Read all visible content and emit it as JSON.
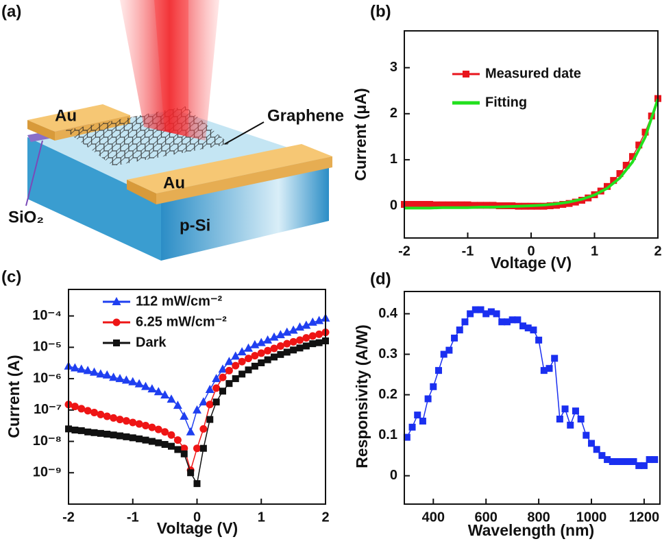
{
  "diagram": {
    "label": "(a)",
    "labels": [
      "Au",
      "Graphene",
      "Au",
      "SiO₂",
      "p-Si"
    ]
  },
  "chart_data": [
    {
      "type": "line",
      "label": "(b)",
      "xlabel": "Voltage (V)",
      "ylabel": "Current (μA)",
      "xlim": [
        -2,
        2
      ],
      "ylim": [
        -0.7,
        3.8
      ],
      "xticks": [
        -2,
        -1,
        0,
        1,
        2
      ],
      "yticks": [
        0,
        1,
        2,
        3
      ],
      "legend": "upper left",
      "series": [
        {
          "name": "Measured date",
          "color": "#e8141c",
          "marker": "square",
          "x": [
            -2,
            -1.9,
            -1.8,
            -1.7,
            -1.6,
            -1.5,
            -1.4,
            -1.3,
            -1.2,
            -1.1,
            -1,
            -0.9,
            -0.8,
            -0.7,
            -0.6,
            -0.5,
            -0.4,
            -0.3,
            -0.2,
            -0.1,
            0,
            0.1,
            0.2,
            0.3,
            0.4,
            0.5,
            0.6,
            0.7,
            0.8,
            0.9,
            1,
            1.1,
            1.2,
            1.3,
            1.4,
            1.5,
            1.6,
            1.7,
            1.8,
            1.9,
            2
          ],
          "values": [
            0.03,
            0.03,
            0.03,
            0.03,
            0.03,
            0.02,
            0.02,
            0.02,
            0.02,
            0.02,
            0.02,
            0.01,
            0.01,
            0.01,
            0.01,
            0,
            0,
            0,
            -0.01,
            -0.01,
            -0.01,
            -0.01,
            -0.01,
            0,
            0.01,
            0.03,
            0.05,
            0.08,
            0.12,
            0.17,
            0.24,
            0.32,
            0.42,
            0.55,
            0.7,
            0.88,
            1.07,
            1.32,
            1.6,
            1.95,
            2.33
          ]
        },
        {
          "name": "Fitting",
          "color": "#22e01e",
          "marker": "none",
          "x": [
            -2,
            -1.8,
            -1.6,
            -1.4,
            -1.2,
            -1,
            -0.8,
            -0.6,
            -0.4,
            -0.2,
            0,
            0.2,
            0.4,
            0.6,
            0.8,
            1,
            1.2,
            1.4,
            1.6,
            1.8,
            2
          ],
          "values": [
            -0.05,
            -0.05,
            -0.05,
            -0.04,
            -0.04,
            -0.04,
            -0.03,
            -0.03,
            -0.02,
            -0.01,
            0,
            0.016,
            0.042,
            0.081,
            0.142,
            0.235,
            0.38,
            0.605,
            0.952,
            1.49,
            2.32
          ]
        }
      ]
    },
    {
      "type": "line",
      "label": "(c)",
      "xlabel": "Voltage (V)",
      "ylabel": "Current (A)",
      "log_y": true,
      "xlim": [
        -2,
        2
      ],
      "ylim": [
        1e-10,
        0.0007
      ],
      "xticks": [
        -2,
        -1,
        0,
        1,
        2
      ],
      "yticks": [
        {
          "value": 1e-09,
          "label": "10⁻⁹"
        },
        {
          "value": 1e-08,
          "label": "10⁻⁸"
        },
        {
          "value": 1e-07,
          "label": "10⁻⁷"
        },
        {
          "value": 1e-06,
          "label": "10⁻⁶"
        },
        {
          "value": 1e-05,
          "label": "10⁻⁵"
        },
        {
          "value": 0.0001,
          "label": "10⁻⁴"
        }
      ],
      "legend": "upper left",
      "x": [
        -2,
        -1.9,
        -1.8,
        -1.7,
        -1.6,
        -1.5,
        -1.4,
        -1.3,
        -1.2,
        -1.1,
        -1,
        -0.9,
        -0.8,
        -0.7,
        -0.6,
        -0.5,
        -0.4,
        -0.3,
        -0.2,
        -0.1,
        0,
        0.1,
        0.2,
        0.3,
        0.4,
        0.5,
        0.6,
        0.7,
        0.8,
        0.9,
        1,
        1.1,
        1.2,
        1.3,
        1.4,
        1.5,
        1.6,
        1.7,
        1.8,
        1.9,
        2
      ],
      "series": [
        {
          "name": "112 mW/cm⁻²",
          "color": "#1f3ff0",
          "marker": "triangle",
          "values": [
            2.5e-06,
            2.2e-06,
            2e-06,
            1.8e-06,
            1.6e-06,
            1.4e-06,
            1.3e-06,
            1.1e-06,
            1e-06,
            8.9e-07,
            7.9e-07,
            6.8e-07,
            5.6e-07,
            4.7e-07,
            3.8e-07,
            3e-07,
            2.2e-07,
            1.4e-07,
            6.3e-08,
            2e-08,
            1e-07,
            1.8e-07,
            4.5e-07,
            1e-06,
            2e-06,
            3.5e-06,
            5.2e-06,
            7.1e-06,
            9.3e-06,
            1.2e-05,
            1.4e-05,
            1.7e-05,
            2.1e-05,
            2.5e-05,
            3e-05,
            3.5e-05,
            4.4e-05,
            5e-05,
            6.3e-05,
            7.1e-05,
            8.5e-05
          ]
        },
        {
          "name": "6.25 mW/cm⁻²",
          "color": "#ee1515",
          "marker": "circle",
          "values": [
            1.5e-07,
            1.3e-07,
            1.1e-07,
            9.5e-08,
            8.3e-08,
            7.2e-08,
            6.3e-08,
            5.6e-08,
            5e-08,
            4.5e-08,
            4e-08,
            3.6e-08,
            3.2e-08,
            2.8e-08,
            2.4e-08,
            2e-08,
            1.6e-08,
            1.1e-08,
            6e-09,
            1.2e-09,
            6e-09,
            2.5e-08,
            1.5e-07,
            5e-07,
            1.1e-06,
            1.8e-06,
            2.6e-06,
            3.5e-06,
            4.4e-06,
            5.4e-06,
            6.5e-06,
            7.8e-06,
            9.2e-06,
            1.1e-05,
            1.3e-05,
            1.5e-05,
            1.7e-05,
            2e-05,
            2.3e-05,
            2.6e-05,
            3e-05
          ]
        },
        {
          "name": "Dark",
          "color": "#111111",
          "marker": "square",
          "values": [
            2.5e-08,
            2.3e-08,
            2.2e-08,
            2e-08,
            1.9e-08,
            1.8e-08,
            1.7e-08,
            1.6e-08,
            1.5e-08,
            1.4e-08,
            1.3e-08,
            1.2e-08,
            1.1e-08,
            1e-08,
            9e-09,
            8e-09,
            7e-09,
            5.5e-09,
            4e-09,
            1e-09,
            4.5e-10,
            6e-09,
            5e-08,
            1.8e-07,
            4e-07,
            7e-07,
            1e-06,
            1.4e-06,
            1.9e-06,
            2.5e-06,
            3.2e-06,
            4e-06,
            4.9e-06,
            5.9e-06,
            7e-06,
            8.2e-06,
            9.5e-06,
            1.1e-05,
            1.3e-05,
            1.4e-05,
            1.6e-05
          ]
        }
      ]
    },
    {
      "type": "line",
      "label": "(d)",
      "xlabel": "Wavelength (nm)",
      "ylabel": "Responsivity (A/W)",
      "xlim": [
        290,
        1260
      ],
      "ylim": [
        -0.07,
        0.455
      ],
      "xticks": [
        400,
        600,
        800,
        1000,
        1200
      ],
      "yticks": [
        0,
        0.1,
        0.2,
        0.3,
        0.4
      ],
      "series": [
        {
          "color": "#1a2ff0",
          "marker": "square",
          "x": [
            300,
            320,
            340,
            360,
            380,
            400,
            420,
            440,
            460,
            480,
            500,
            520,
            540,
            560,
            580,
            600,
            620,
            640,
            660,
            680,
            700,
            720,
            740,
            760,
            780,
            800,
            820,
            840,
            860,
            880,
            900,
            920,
            940,
            960,
            980,
            1000,
            1020,
            1040,
            1060,
            1080,
            1100,
            1120,
            1140,
            1160,
            1180,
            1200,
            1220,
            1240
          ],
          "values": [
            0.095,
            0.12,
            0.15,
            0.135,
            0.19,
            0.22,
            0.26,
            0.3,
            0.31,
            0.34,
            0.36,
            0.38,
            0.4,
            0.41,
            0.41,
            0.4,
            0.405,
            0.4,
            0.38,
            0.38,
            0.385,
            0.385,
            0.37,
            0.365,
            0.36,
            0.335,
            0.26,
            0.265,
            0.29,
            0.14,
            0.165,
            0.125,
            0.16,
            0.14,
            0.1,
            0.08,
            0.065,
            0.05,
            0.04,
            0.035,
            0.035,
            0.035,
            0.035,
            0.035,
            0.025,
            0.025,
            0.04,
            0.04
          ]
        }
      ]
    }
  ]
}
